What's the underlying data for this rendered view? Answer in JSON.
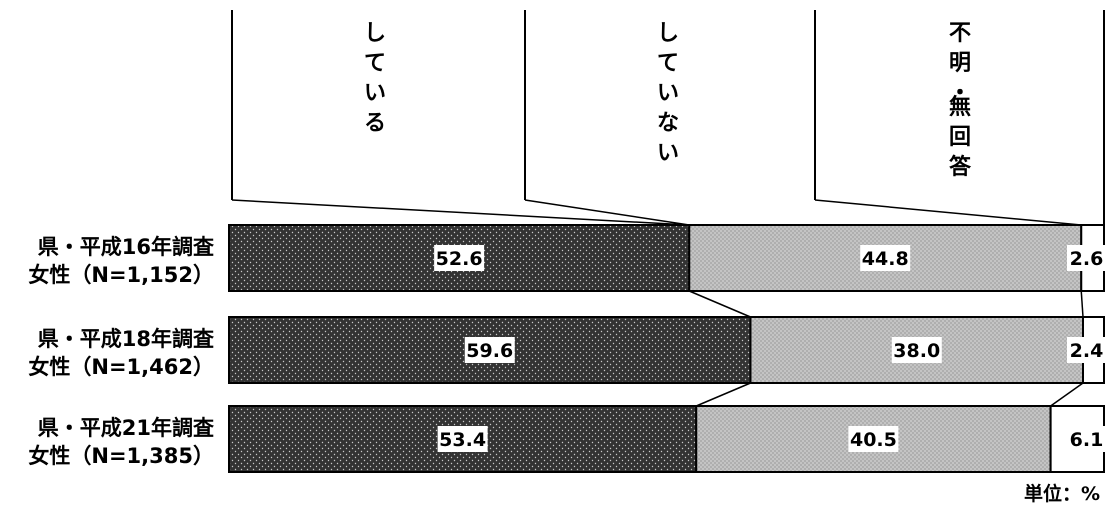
{
  "chart_data": {
    "type": "bar",
    "stacked": true,
    "orientation": "horizontal",
    "percent_scale": true,
    "unit_note": "単位：%",
    "categories": [
      [
        "県・平成16年調査",
        "女性（N=1,152）"
      ],
      [
        "県・平成18年調査",
        "女性（N=1,462）"
      ],
      [
        "県・平成21年調査",
        "女性（N=1,385）"
      ]
    ],
    "series": [
      {
        "name": "している",
        "values": [
          52.6,
          59.6,
          53.4
        ],
        "color": "#333333",
        "pattern": "dots-light"
      },
      {
        "name": "していない",
        "values": [
          44.8,
          38.0,
          40.5
        ],
        "color": "#bfbfbf",
        "pattern": "dots-dark"
      },
      {
        "name": "不明・無回答",
        "values": [
          2.6,
          2.4,
          6.1
        ],
        "color": "#ffffff",
        "pattern": "none"
      }
    ],
    "xlim": [
      0,
      100
    ],
    "grid": false,
    "legend_position": "top, vertical labels above each segment"
  }
}
